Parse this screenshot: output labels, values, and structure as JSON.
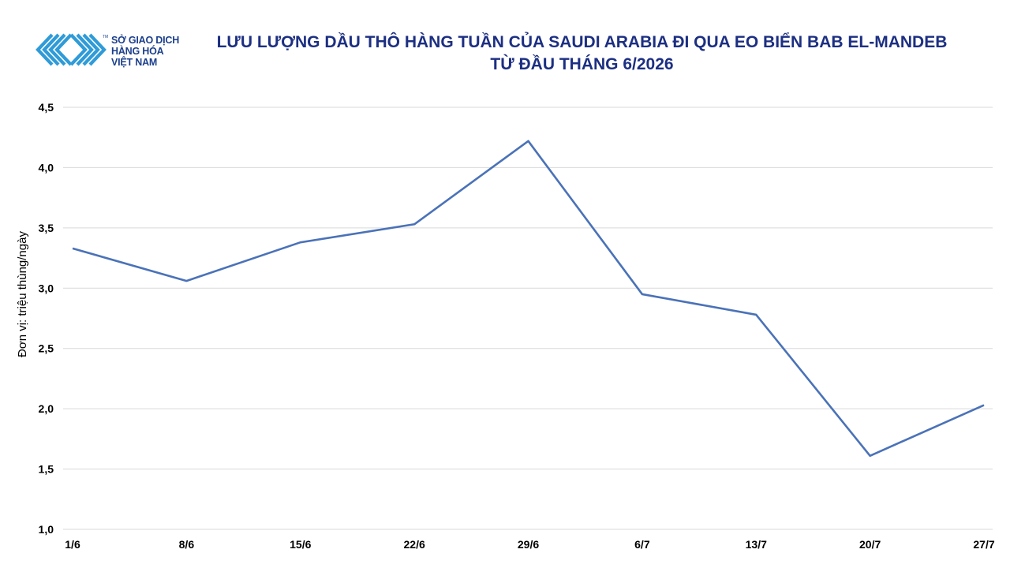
{
  "logo": {
    "line1": "SỞ GIAO DỊCH",
    "line2": "HÀNG HÓA",
    "line3": "VIỆT NAM",
    "tm": "TM",
    "color": "#2f9bd8"
  },
  "chart_data": {
    "type": "line",
    "title_line1": "LƯU LƯỢNG DẦU THÔ HÀNG TUẦN CỦA SAUDI ARABIA ĐI QUA EO BIỂN BAB EL-MANDEB",
    "title_line2": "TỪ ĐẦU THÁNG 6/2026",
    "ylabel": "Đơn vị: triệu thùng/ngày",
    "xlabel": "",
    "categories": [
      "1/6",
      "8/6",
      "15/6",
      "22/6",
      "29/6",
      "6/7",
      "13/7",
      "20/7",
      "27/7"
    ],
    "values": [
      3.33,
      3.06,
      3.38,
      3.53,
      4.22,
      2.95,
      2.78,
      1.61,
      2.03
    ],
    "ylim": [
      1.0,
      4.5
    ],
    "yticks": [
      "1,0",
      "1,5",
      "2,0",
      "2,5",
      "3,0",
      "3,5",
      "4,0",
      "4,5"
    ],
    "ytick_values": [
      1.0,
      1.5,
      2.0,
      2.5,
      3.0,
      3.5,
      4.0,
      4.5
    ],
    "grid": true,
    "legend": "none",
    "line_color": "#4a72b8",
    "grid_color": "#d9d9d9"
  }
}
